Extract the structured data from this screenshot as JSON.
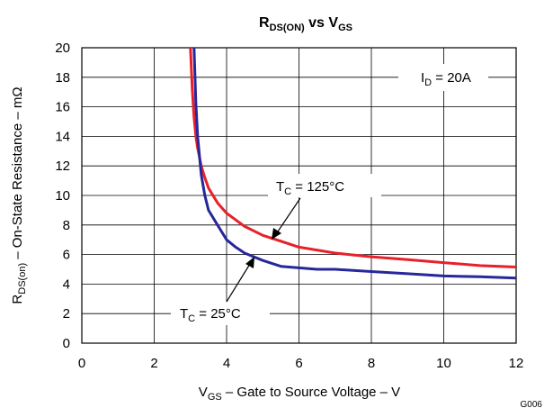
{
  "chart_data": {
    "type": "line",
    "title": {
      "main": "R",
      "sub1": "DS(ON)",
      "mid": " vs V",
      "sub2": "GS"
    },
    "xlabel": {
      "pre": "V",
      "sub": "GS",
      "post": " – Gate to Source Voltage – V"
    },
    "ylabel": {
      "pre": "R",
      "sub": "DS(on)",
      "post": " – On-State Resistance – mΩ"
    },
    "xlim": [
      0,
      12
    ],
    "ylim": [
      0,
      20
    ],
    "x_ticks": [
      "0",
      "2",
      "4",
      "6",
      "8",
      "10",
      "12"
    ],
    "y_ticks": [
      "0",
      "2",
      "4",
      "6",
      "8",
      "10",
      "12",
      "14",
      "16",
      "18",
      "20"
    ],
    "grid": true,
    "code": "G006",
    "condition": {
      "pre": "I",
      "sub": "D",
      "post": " = 20A"
    },
    "series": [
      {
        "label": {
          "pre": "T",
          "sub": "C",
          "post": " = 125°C"
        },
        "color": "#e8202a",
        "x": [
          3.0,
          3.05,
          3.1,
          3.15,
          3.2,
          3.3,
          3.4,
          3.5,
          3.75,
          4.0,
          4.5,
          5.0,
          5.5,
          6.0,
          7.0,
          8.0,
          9.0,
          10.0,
          11.0,
          12.0
        ],
        "y": [
          20.0,
          17.2,
          15.3,
          14.0,
          13.2,
          12.0,
          11.2,
          10.5,
          9.5,
          8.8,
          7.9,
          7.3,
          6.9,
          6.5,
          6.1,
          5.85,
          5.65,
          5.45,
          5.25,
          5.15
        ]
      },
      {
        "label": {
          "pre": "T",
          "sub": "C",
          "post": " = 25°C"
        },
        "color": "#27279b",
        "x": [
          3.1,
          3.15,
          3.2,
          3.3,
          3.4,
          3.5,
          3.75,
          4.0,
          4.25,
          4.5,
          5.0,
          5.5,
          6.0,
          6.5,
          7.0,
          8.0,
          9.0,
          10.0,
          11.0,
          12.0
        ],
        "y": [
          20.0,
          16.3,
          14.0,
          11.4,
          10.0,
          9.0,
          8.0,
          7.0,
          6.5,
          6.1,
          5.6,
          5.2,
          5.1,
          5.0,
          5.0,
          4.85,
          4.7,
          4.55,
          4.5,
          4.4
        ]
      }
    ]
  }
}
